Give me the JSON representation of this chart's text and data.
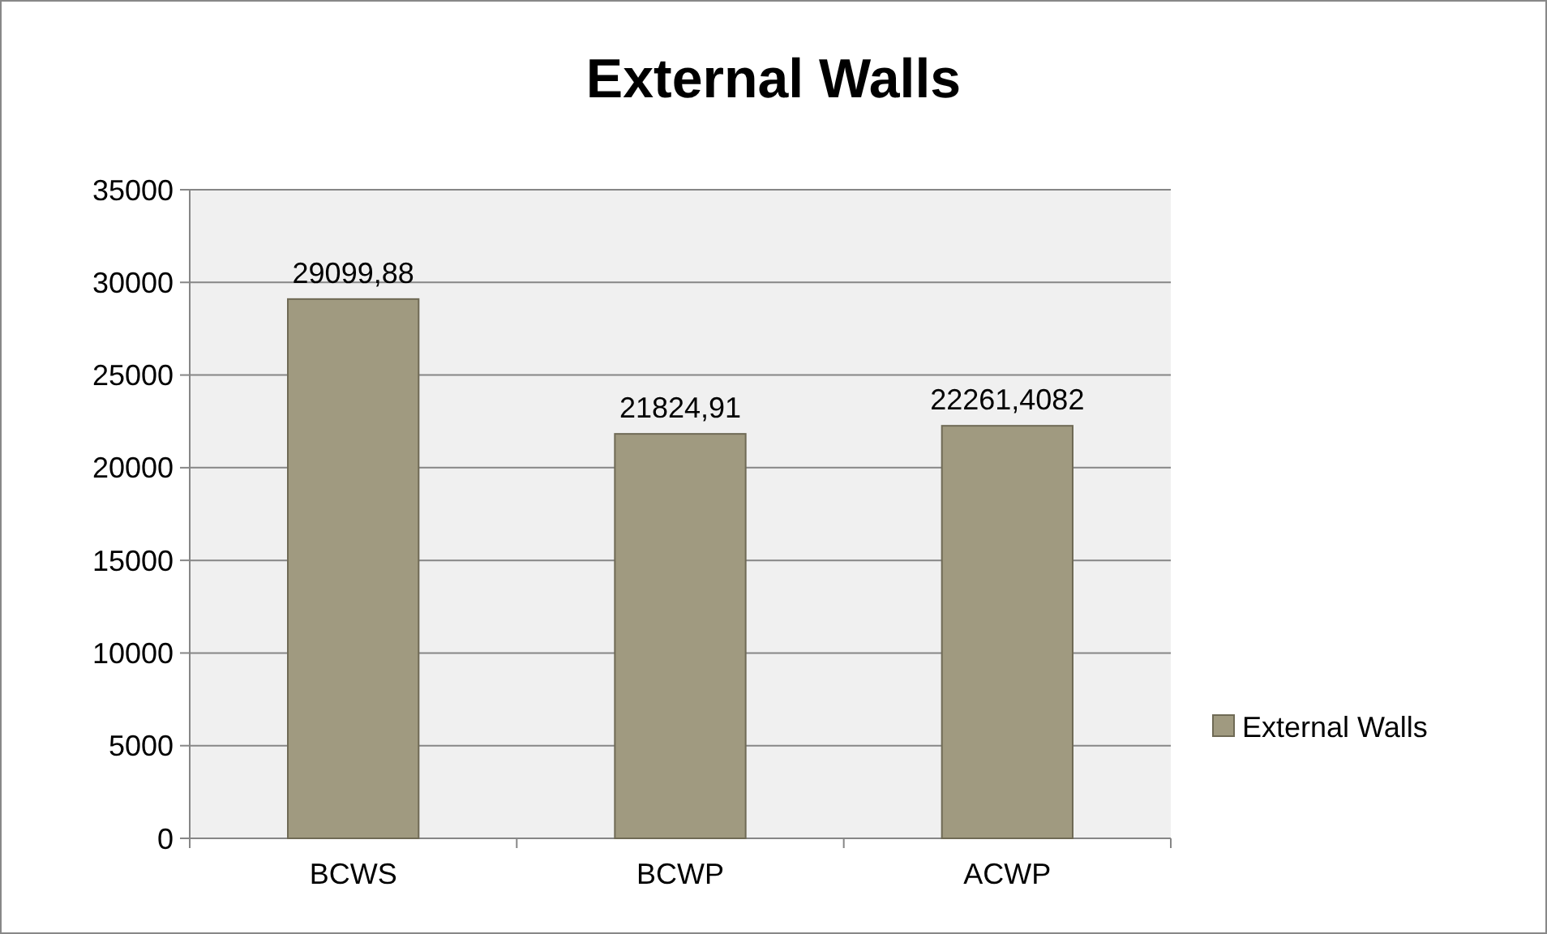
{
  "chart_data": {
    "type": "bar",
    "title": "External Walls",
    "categories": [
      "BCWS",
      "BCWP",
      "ACWP"
    ],
    "series": [
      {
        "name": "External Walls",
        "color": "#a09a80",
        "values": [
          29099.88,
          21824.91,
          22261.4082
        ],
        "value_labels": [
          "29099,88",
          "21824,91",
          "22261,4082"
        ]
      }
    ],
    "ylim": [
      0,
      35000
    ],
    "yticks": [
      0,
      5000,
      10000,
      15000,
      20000,
      25000,
      30000,
      35000
    ],
    "grid": "y",
    "legend": "right"
  }
}
